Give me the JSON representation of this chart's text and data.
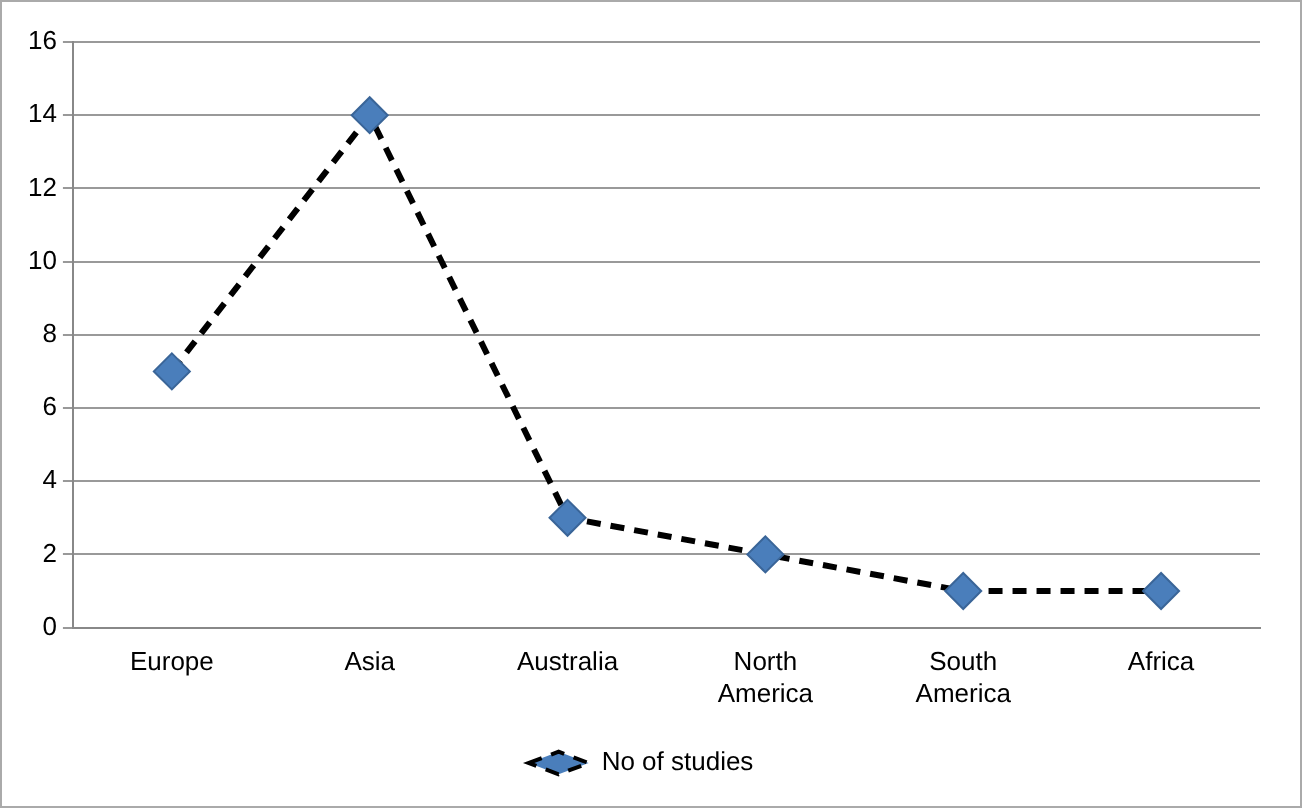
{
  "chart_data": {
    "type": "line",
    "categories": [
      "Europe",
      "Asia",
      "Australia",
      "North America",
      "South America",
      "Africa"
    ],
    "series": [
      {
        "name": "No of studies",
        "color": "#4a7ebb",
        "values": [
          7,
          14,
          3,
          2,
          1,
          1
        ]
      }
    ],
    "ylim": [
      0,
      16
    ],
    "yticks": [
      0,
      2,
      4,
      6,
      8,
      10,
      12,
      14,
      16
    ],
    "grid": "y",
    "legend": "bottom",
    "marker": "diamond",
    "line_style": "dashed"
  }
}
